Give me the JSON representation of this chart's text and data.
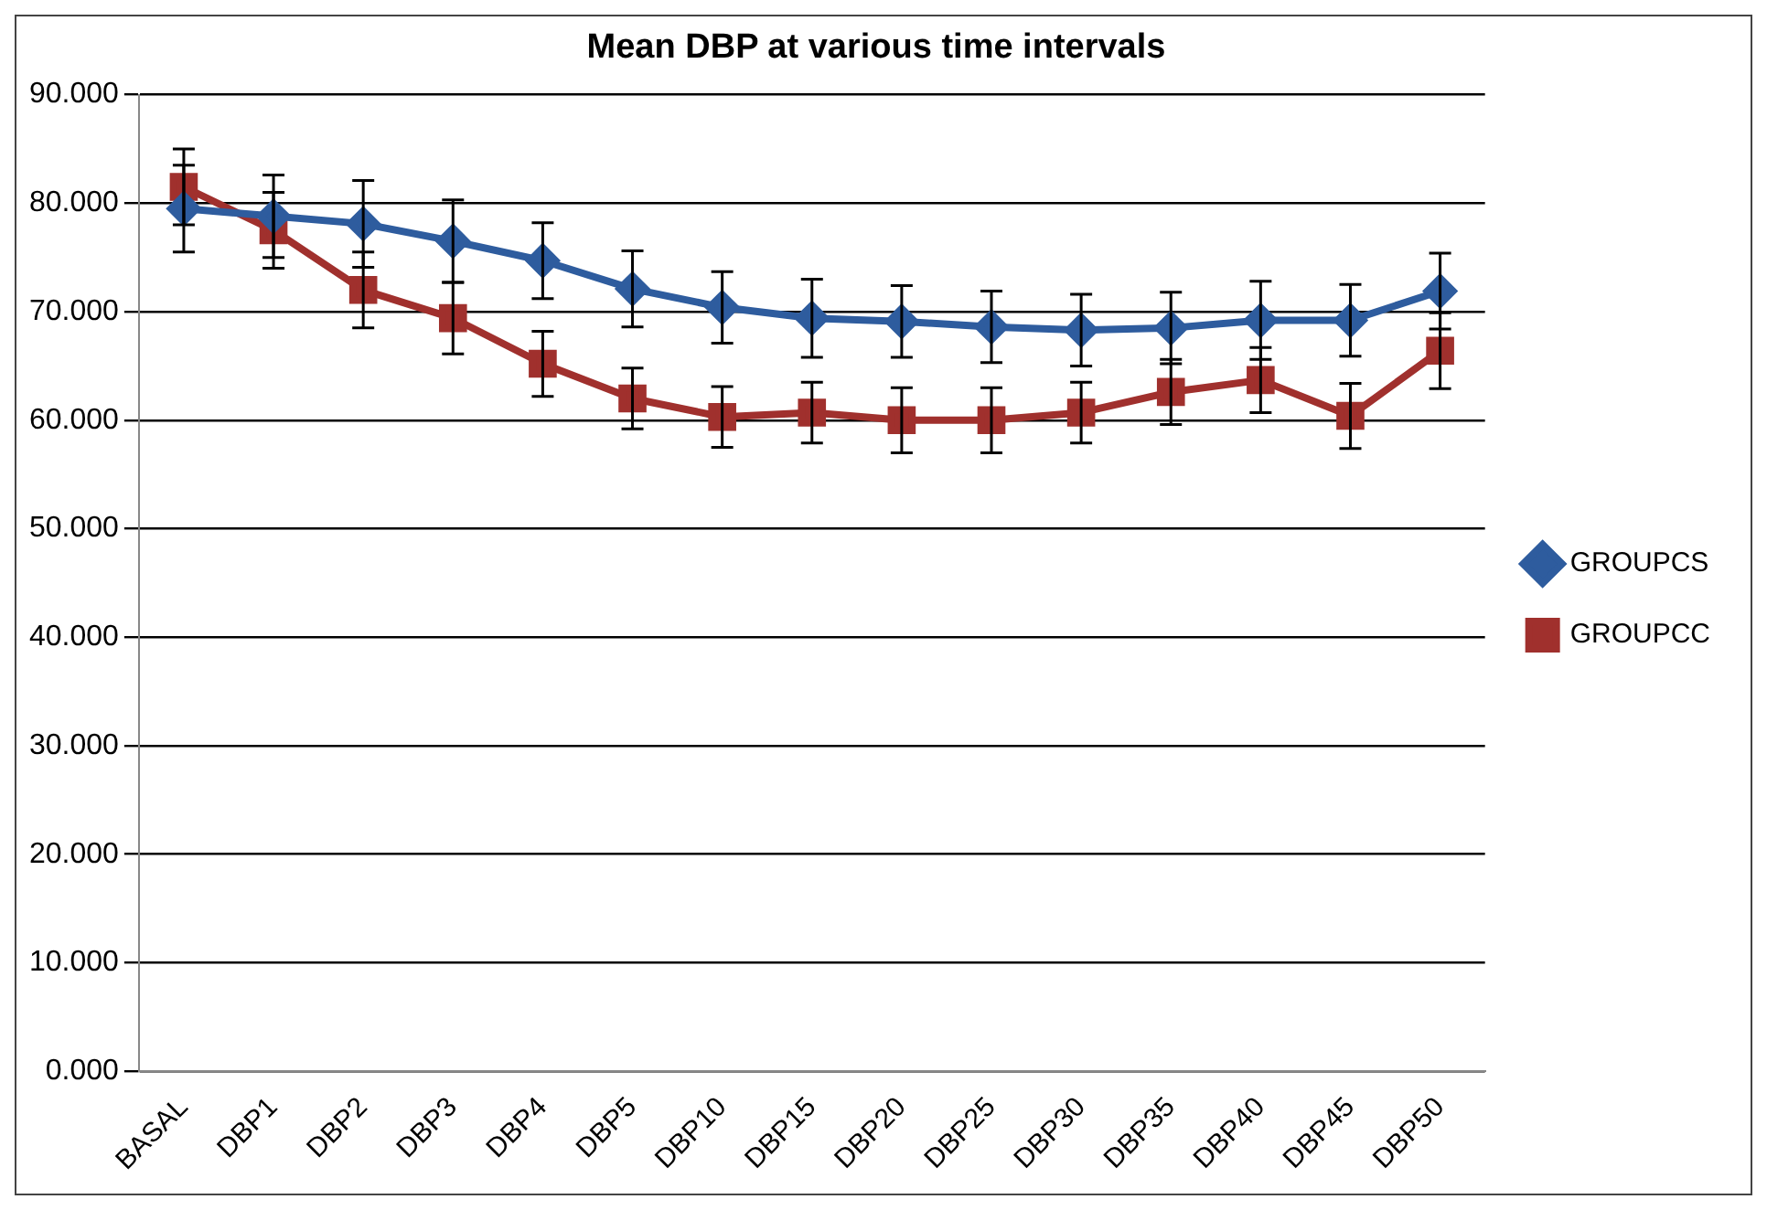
{
  "chart_data": {
    "type": "line",
    "title": "Mean DBP at various time intervals",
    "categories": [
      "BASAL",
      "DBP1",
      "DBP2",
      "DBP3",
      "DBP4",
      "DBP5",
      "DBP10",
      "DBP15",
      "DBP20",
      "DBP25",
      "DBP30",
      "DBP35",
      "DBP40",
      "DBP45",
      "DBP50"
    ],
    "series": [
      {
        "name": "GROUPCS",
        "color": "#2e5c9e",
        "marker": "diamond",
        "values": [
          79.5,
          78.8,
          78.1,
          76.5,
          74.7,
          72.1,
          70.4,
          69.4,
          69.1,
          68.6,
          68.3,
          68.5,
          69.2,
          69.2,
          71.9
        ],
        "errors": [
          4,
          3.8,
          4,
          3.8,
          3.5,
          3.5,
          3.3,
          3.6,
          3.3,
          3.3,
          3.3,
          3.3,
          3.6,
          3.3,
          3.5
        ]
      },
      {
        "name": "GROUPCC",
        "color": "#a0302d",
        "marker": "square",
        "values": [
          81.5,
          77.5,
          72.0,
          69.4,
          65.2,
          62.0,
          60.3,
          60.7,
          60.0,
          60.0,
          60.7,
          62.6,
          63.7,
          60.4,
          66.4
        ],
        "errors": [
          3.5,
          3.5,
          3.5,
          3.3,
          3,
          2.8,
          2.8,
          2.8,
          3,
          3,
          2.8,
          3,
          3,
          3,
          3.5
        ]
      }
    ],
    "ylim": [
      0,
      90
    ],
    "yticks": [
      {
        "value": 0,
        "label": "0.000"
      },
      {
        "value": 10,
        "label": "10.000"
      },
      {
        "value": 20,
        "label": "20.000"
      },
      {
        "value": 30,
        "label": "30.000"
      },
      {
        "value": 40,
        "label": "40.000"
      },
      {
        "value": 50,
        "label": "50.000"
      },
      {
        "value": 60,
        "label": "60.000"
      },
      {
        "value": 70,
        "label": "70.000"
      },
      {
        "value": 80,
        "label": "80.000"
      },
      {
        "value": 90,
        "label": "90.000"
      }
    ],
    "grid": "y",
    "legend": "right",
    "line_style": "solid"
  }
}
